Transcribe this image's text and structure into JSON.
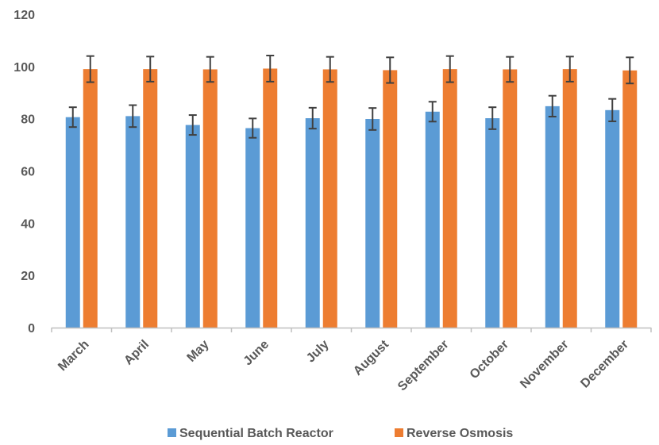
{
  "chart_data": {
    "type": "bar",
    "title": "",
    "xlabel": "",
    "ylabel": "",
    "ylim": [
      0,
      120
    ],
    "yticks": [
      0,
      20,
      40,
      60,
      80,
      100,
      120
    ],
    "grid": false,
    "legend_position": "bottom",
    "categories": [
      "March",
      "April",
      "May",
      "June",
      "July",
      "August",
      "September",
      "October",
      "November",
      "December"
    ],
    "series": [
      {
        "name": "Sequential Batch Reactor",
        "color": "#5B9BD5",
        "values": [
          80.6,
          81.0,
          77.6,
          76.4,
          80.2,
          79.9,
          82.7,
          80.2,
          84.8,
          83.3
        ],
        "errors": [
          3.8,
          4.2,
          3.8,
          3.7,
          4.0,
          4.2,
          3.8,
          4.2,
          4.0,
          4.3
        ]
      },
      {
        "name": "Reverse Osmosis",
        "color": "#ED7D31",
        "values": [
          99.0,
          99.0,
          98.9,
          99.2,
          98.9,
          98.6,
          99.0,
          98.9,
          99.0,
          98.5
        ],
        "errors": [
          5.0,
          4.8,
          4.8,
          5.0,
          4.8,
          4.9,
          5.0,
          4.8,
          4.8,
          5.0
        ]
      }
    ],
    "error_bar_color": "#404040",
    "axis_color": "#BFBFBF"
  }
}
